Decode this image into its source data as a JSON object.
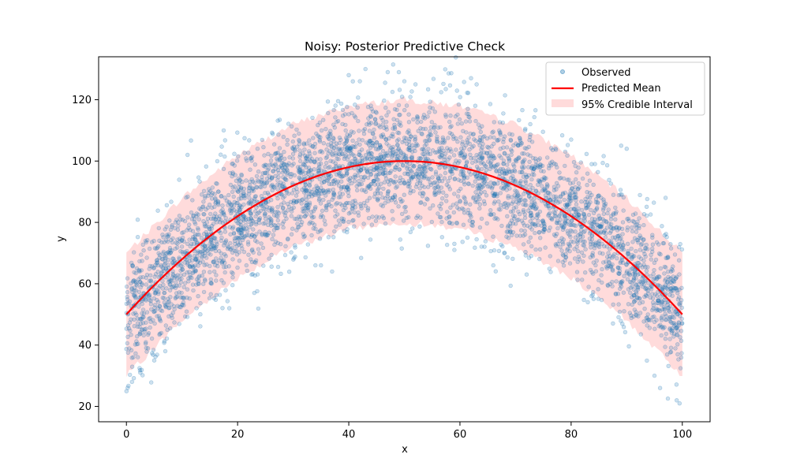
{
  "chart_data": {
    "type": "scatter",
    "title": "Noisy: Posterior Predictive Check",
    "xlabel": "x",
    "ylabel": "y",
    "xlim": [
      -5,
      105
    ],
    "ylim": [
      15,
      134
    ],
    "x_ticks": [
      0,
      20,
      40,
      60,
      80,
      100
    ],
    "y_ticks": [
      20,
      40,
      60,
      80,
      100,
      120
    ],
    "grid": false,
    "legend_position": "top-right",
    "model": {
      "name": "Predicted Mean",
      "color": "#ff0000",
      "x": [
        0,
        10,
        20,
        30,
        40,
        50,
        60,
        70,
        80,
        90,
        100
      ],
      "y": [
        50,
        68,
        82,
        92,
        98,
        100,
        98,
        92,
        82,
        68,
        50
      ]
    },
    "interval": {
      "name": "95% Credible Interval",
      "color": "#ffcccc",
      "x": [
        0,
        10,
        20,
        30,
        40,
        50,
        60,
        70,
        80,
        90,
        100
      ],
      "lower": [
        30,
        48,
        62,
        72,
        78,
        80,
        78,
        72,
        62,
        48,
        30
      ],
      "upper": [
        70,
        88,
        102,
        112,
        118,
        120,
        118,
        112,
        102,
        88,
        70
      ]
    },
    "observed": {
      "name": "Observed",
      "color": "#1f77b4",
      "count": 4000,
      "outliers": [
        {
          "x": 1,
          "y": 28
        },
        {
          "x": 2.5,
          "y": 31
        },
        {
          "x": 5,
          "y": 35
        },
        {
          "x": 7,
          "y": 38
        },
        {
          "x": 11,
          "y": 102
        },
        {
          "x": 17.5,
          "y": 110
        },
        {
          "x": 18.5,
          "y": 52
        },
        {
          "x": 23,
          "y": 57
        },
        {
          "x": 34,
          "y": 66
        },
        {
          "x": 35,
          "y": 66
        },
        {
          "x": 37,
          "y": 64
        },
        {
          "x": 40,
          "y": 128
        },
        {
          "x": 42,
          "y": 126
        },
        {
          "x": 43,
          "y": 130
        },
        {
          "x": 47,
          "y": 129
        },
        {
          "x": 49,
          "y": 129
        },
        {
          "x": 50,
          "y": 126
        },
        {
          "x": 52,
          "y": 125
        },
        {
          "x": 59,
          "y": 73
        },
        {
          "x": 59,
          "y": 71
        },
        {
          "x": 62,
          "y": 127
        },
        {
          "x": 63,
          "y": 125
        },
        {
          "x": 66,
          "y": 66
        },
        {
          "x": 68,
          "y": 70
        },
        {
          "x": 72,
          "y": 63
        },
        {
          "x": 80,
          "y": 107
        },
        {
          "x": 83,
          "y": 54
        },
        {
          "x": 89,
          "y": 105
        },
        {
          "x": 90,
          "y": 104
        },
        {
          "x": 95,
          "y": 30
        },
        {
          "x": 96,
          "y": 26
        },
        {
          "x": 99,
          "y": 22
        },
        {
          "x": 99.5,
          "y": 21
        },
        {
          "x": 97,
          "y": 88
        }
      ]
    }
  }
}
